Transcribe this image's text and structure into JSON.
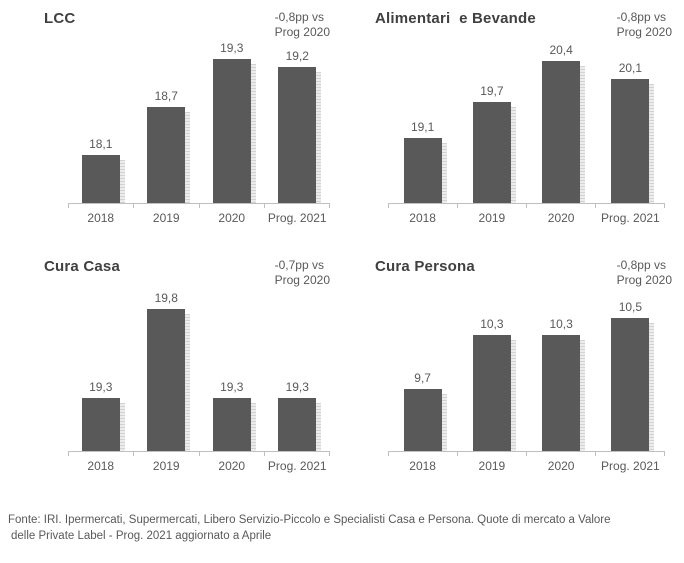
{
  "colors": {
    "bar": "#595959",
    "bar_shadow": "#d9d9d9",
    "axis": "#bfbfbf",
    "title": "#404040",
    "label": "#595959",
    "background": "#ffffff"
  },
  "chart_data": [
    {
      "id": "lcc",
      "type": "bar",
      "title": "LCC",
      "annotation_line1": "-0,8pp vs",
      "annotation_line2": "Prog 2020",
      "categories": [
        "2018",
        "2019",
        "2020",
        "Prog. 2021"
      ],
      "values": [
        18.1,
        18.7,
        19.3,
        19.2
      ],
      "value_labels": [
        "18,1",
        "18,7",
        "19,3",
        "19,2"
      ],
      "ylim": [
        17.5,
        19.5
      ],
      "xlabel": "",
      "ylabel": "",
      "grid": false,
      "legend": false
    },
    {
      "id": "alimentari-e-bevande",
      "type": "bar",
      "title": "Alimentari  e Bevande",
      "annotation_line1": "-0,8pp vs",
      "annotation_line2": "Prog 2020",
      "categories": [
        "2018",
        "2019",
        "2020",
        "Prog. 2021"
      ],
      "values": [
        19.1,
        19.7,
        20.4,
        20.1
      ],
      "value_labels": [
        "19,1",
        "19,7",
        "20,4",
        "20,1"
      ],
      "ylim": [
        18.0,
        20.7
      ],
      "xlabel": "",
      "ylabel": "",
      "grid": false,
      "legend": false
    },
    {
      "id": "cura-casa",
      "type": "bar",
      "title": "Cura Casa",
      "annotation_line1": "-0,7pp vs",
      "annotation_line2": "Prog 2020",
      "categories": [
        "2018",
        "2019",
        "2020",
        "Prog. 2021"
      ],
      "values": [
        19.3,
        19.8,
        19.3,
        19.3
      ],
      "value_labels": [
        "19,3",
        "19,8",
        "19,3",
        "19,3"
      ],
      "ylim": [
        19.0,
        19.9
      ],
      "xlabel": "",
      "ylabel": "",
      "grid": false,
      "legend": false
    },
    {
      "id": "cura-persona",
      "type": "bar",
      "title": "Cura Persona",
      "annotation_line1": "-0,8pp vs",
      "annotation_line2": "Prog 2020",
      "categories": [
        "2018",
        "2019",
        "2020",
        "Prog. 2021"
      ],
      "values": [
        9.7,
        10.3,
        10.3,
        10.5
      ],
      "value_labels": [
        "9,7",
        "10,3",
        "10,3",
        "10,5"
      ],
      "ylim": [
        9.0,
        10.8
      ],
      "xlabel": "",
      "ylabel": "",
      "grid": false,
      "legend": false
    }
  ],
  "footer": {
    "lines": [
      "Fonte: IRI. Ipermercati, Supermercati, Libero Servizio-Piccolo e Specialisti Casa e Persona. Quote di mercato a Valore",
      "delle Private Label - Prog. 2021 aggiornato a Aprile"
    ]
  }
}
